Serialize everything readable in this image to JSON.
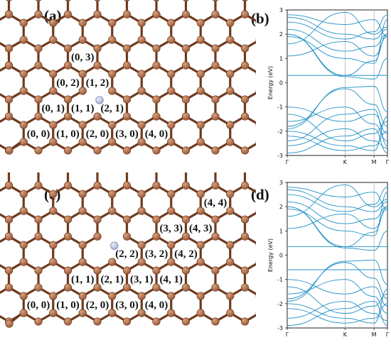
{
  "panels": [
    {
      "letter": "(a)",
      "defect": [
        2,
        1
      ],
      "labels": [
        {
          "i": 0,
          "j": 0,
          "text": "(0, 0)"
        },
        {
          "i": 1,
          "j": 0,
          "text": "(1, 0)"
        },
        {
          "i": 2,
          "j": 0,
          "text": "(2, 0)"
        },
        {
          "i": 3,
          "j": 0,
          "text": "(3, 0)"
        },
        {
          "i": 4,
          "j": 0,
          "text": "(4, 0)"
        },
        {
          "i": 0,
          "j": 1,
          "text": "(0, 1)"
        },
        {
          "i": 1,
          "j": 1,
          "text": "(1, 1)"
        },
        {
          "i": 2,
          "j": 1,
          "text": "(2, 1)"
        },
        {
          "i": 0,
          "j": 2,
          "text": "(0, 2)"
        },
        {
          "i": 1,
          "j": 2,
          "text": "(1, 2)"
        },
        {
          "i": 0,
          "j": 3,
          "text": "(0, 3)"
        }
      ]
    },
    {
      "letter": "(c)",
      "defect": [
        2,
        2
      ],
      "labels": [
        {
          "i": 0,
          "j": 0,
          "text": "(0, 0)"
        },
        {
          "i": 1,
          "j": 0,
          "text": "(1, 0)"
        },
        {
          "i": 2,
          "j": 0,
          "text": "(2, 0)"
        },
        {
          "i": 3,
          "j": 0,
          "text": "(3, 0)"
        },
        {
          "i": 4,
          "j": 0,
          "text": "(4, 0)"
        },
        {
          "i": 1,
          "j": 1,
          "text": "(1, 1)"
        },
        {
          "i": 2,
          "j": 1,
          "text": "(2, 1)"
        },
        {
          "i": 3,
          "j": 1,
          "text": "(3, 1)"
        },
        {
          "i": 4,
          "j": 1,
          "text": "(4, 1)"
        },
        {
          "i": 2,
          "j": 2,
          "text": "(2, 2)"
        },
        {
          "i": 3,
          "j": 2,
          "text": "(3, 2)"
        },
        {
          "i": 4,
          "j": 2,
          "text": "(4, 2)"
        },
        {
          "i": 3,
          "j": 3,
          "text": "(3, 3)"
        },
        {
          "i": 4,
          "j": 3,
          "text": "(4, 3)"
        },
        {
          "i": 4,
          "j": 4,
          "text": "(4, 4)"
        }
      ]
    }
  ],
  "chart_data": [
    {
      "panel": "(b)",
      "type": "line",
      "ylabel": "Energy (eV)",
      "ylim": [
        -3,
        3
      ],
      "yticks": [
        "3",
        "2",
        "1",
        "0",
        "-1",
        "-2",
        "-3"
      ],
      "kpoints": [
        "Γ",
        "K",
        "M",
        "Γ"
      ],
      "kpos": [
        0,
        0.577,
        0.866,
        1.0
      ],
      "series": [
        {
          "values": [
            2.0,
            0.3,
            0.9,
            2.0
          ]
        },
        {
          "values": [
            -1.8,
            -0.25,
            -0.9,
            -1.8
          ]
        },
        {
          "values": [
            2.0,
            0.25,
            0.15,
            1.0
          ]
        },
        {
          "values": [
            -1.9,
            -0.2,
            -0.15,
            -1.2
          ]
        },
        {
          "values": [
            0.3,
            0.3,
            0.3,
            0.3
          ]
        },
        {
          "values": [
            2.8,
            2.4,
            2.6,
            1.9
          ]
        },
        {
          "values": [
            2.5,
            1.8,
            2.1,
            2.8
          ]
        },
        {
          "values": [
            2.2,
            1.3,
            1.5,
            2.0
          ]
        },
        {
          "values": [
            1.9,
            1.0,
            0.8,
            2.6
          ]
        },
        {
          "values": [
            1.6,
            2.9,
            2.0,
            2.3
          ]
        },
        {
          "values": [
            1.1,
            1.7,
            1.1,
            1.9
          ]
        },
        {
          "values": [
            -1.0,
            -1.6,
            -1.3,
            -2.1
          ]
        },
        {
          "values": [
            -1.3,
            -2.4,
            -2.1,
            -1.6
          ]
        },
        {
          "values": [
            -1.6,
            -1.0,
            -1.7,
            -2.4
          ]
        },
        {
          "values": [
            -2.2,
            -2.8,
            -2.6,
            -2.0
          ]
        },
        {
          "values": [
            -2.6,
            -1.9,
            -2.4,
            -2.7
          ]
        },
        {
          "values": [
            -2.9,
            -2.2,
            -1.9,
            -2.9
          ]
        },
        {
          "values": [
            -2.0,
            -2.6,
            -2.8,
            -1.4
          ]
        },
        {
          "values": [
            2.7,
            2.0,
            1.8,
            2.2
          ]
        },
        {
          "values": [
            -2.4,
            -1.3,
            -1.1,
            -2.6
          ]
        }
      ]
    },
    {
      "panel": "(d)",
      "type": "line",
      "ylabel": "Energy (eV)",
      "ylim": [
        -3,
        3
      ],
      "yticks": [
        "3",
        "2",
        "1",
        "0",
        "-1",
        "-2",
        "-3"
      ],
      "kpoints": [
        "Γ",
        "K",
        "M",
        "Γ"
      ],
      "kpos": [
        0,
        0.577,
        0.866,
        1.0
      ],
      "series": [
        {
          "values": [
            2.0,
            0.35,
            0.95,
            2.0
          ]
        },
        {
          "values": [
            -1.8,
            -0.3,
            -0.95,
            -1.8
          ]
        },
        {
          "values": [
            2.0,
            0.3,
            0.2,
            1.0
          ]
        },
        {
          "values": [
            -1.9,
            -0.25,
            -0.2,
            -1.2
          ]
        },
        {
          "values": [
            0.35,
            0.35,
            0.35,
            0.35
          ]
        },
        {
          "values": [
            -0.6,
            -0.6,
            -0.6,
            -0.6
          ]
        },
        {
          "values": [
            2.8,
            2.4,
            2.6,
            1.9
          ]
        },
        {
          "values": [
            2.5,
            1.8,
            2.1,
            2.8
          ]
        },
        {
          "values": [
            2.2,
            1.3,
            1.5,
            2.0
          ]
        },
        {
          "values": [
            1.9,
            1.0,
            0.8,
            2.6
          ]
        },
        {
          "values": [
            1.6,
            2.9,
            2.0,
            2.3
          ]
        },
        {
          "values": [
            1.1,
            1.7,
            1.1,
            1.9
          ]
        },
        {
          "values": [
            -1.0,
            -1.6,
            -1.3,
            -2.1
          ]
        },
        {
          "values": [
            -1.3,
            -2.4,
            -2.1,
            -1.6
          ]
        },
        {
          "values": [
            -1.6,
            -1.0,
            -1.7,
            -2.4
          ]
        },
        {
          "values": [
            -2.2,
            -2.8,
            -2.6,
            -2.0
          ]
        },
        {
          "values": [
            -2.6,
            -1.9,
            -2.4,
            -2.7
          ]
        },
        {
          "values": [
            -2.9,
            -2.2,
            -1.9,
            -2.9
          ]
        },
        {
          "values": [
            -2.0,
            -2.6,
            -2.8,
            -1.4
          ]
        },
        {
          "values": [
            2.7,
            2.0,
            1.8,
            2.2
          ]
        }
      ]
    }
  ],
  "colors": {
    "carbon": "#9b5a38",
    "carbon_edge": "#6e3a1f",
    "defect": "#a9b2d6",
    "band": "#1f8fc6",
    "grid": "#b0b0b0"
  }
}
